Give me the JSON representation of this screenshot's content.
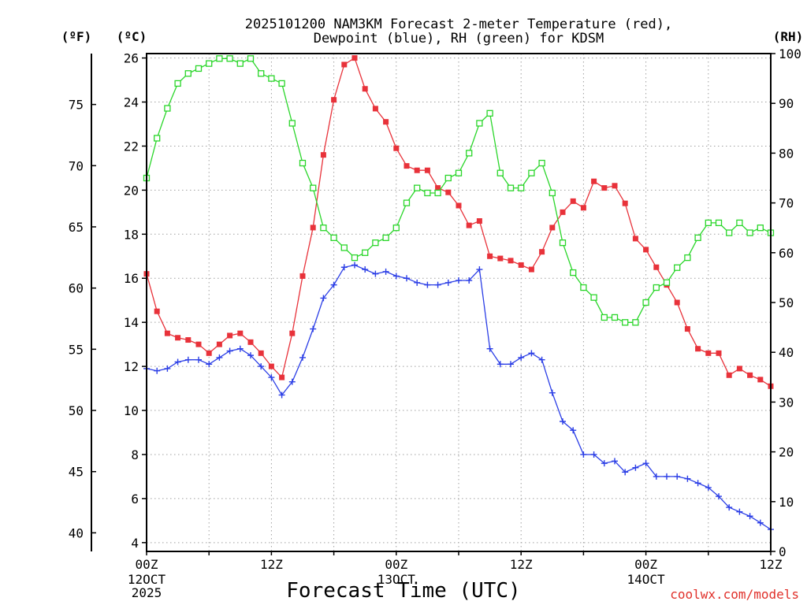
{
  "chart_data": {
    "type": "line",
    "title": [
      "2025101200 NAM3KM Forecast 2-meter Temperature (red),",
      "Dewpoint (blue), RH (green) for KDSM"
    ],
    "xlabel": "Forecast Time (UTC)",
    "credit": "coolwx.com/models",
    "units": {
      "left_outer": "(ºF)",
      "left_inner": "(ºC)",
      "right": "(RH)"
    },
    "x_hours": [
      0,
      1,
      2,
      3,
      4,
      5,
      6,
      7,
      8,
      9,
      10,
      11,
      12,
      13,
      14,
      15,
      16,
      17,
      18,
      19,
      20,
      21,
      22,
      23,
      24,
      25,
      26,
      27,
      28,
      29,
      30,
      31,
      32,
      33,
      34,
      35,
      36,
      37,
      38,
      39,
      40,
      41,
      42,
      43,
      44,
      45,
      46,
      47,
      48,
      49,
      50,
      51,
      52,
      53,
      54,
      55,
      56,
      57,
      58,
      59,
      60
    ],
    "xlim": [
      0,
      60
    ],
    "x_ticks": [
      {
        "hour": 0,
        "label": "00Z",
        "sub": [
          "12OCT",
          "2025"
        ]
      },
      {
        "hour": 12,
        "label": "12Z",
        "sub": []
      },
      {
        "hour": 24,
        "label": "00Z",
        "sub": [
          "13OCT"
        ]
      },
      {
        "hour": 36,
        "label": "12Z",
        "sub": []
      },
      {
        "hour": 48,
        "label": "00Z",
        "sub": [
          "14OCT"
        ]
      },
      {
        "hour": 60,
        "label": "12Z",
        "sub": []
      }
    ],
    "y_celsius": {
      "lim": [
        3.6,
        26.2
      ],
      "ticks": [
        4,
        6,
        8,
        10,
        12,
        14,
        16,
        18,
        20,
        22,
        24,
        26
      ]
    },
    "y_fahrenheit": {
      "ticks": [
        40,
        45,
        50,
        55,
        60,
        65,
        70,
        75
      ]
    },
    "y_rh": {
      "lim": [
        0,
        100
      ],
      "ticks": [
        0,
        10,
        20,
        30,
        40,
        50,
        60,
        70,
        80,
        90,
        100
      ]
    },
    "series": [
      {
        "name": "2-meter Temperature",
        "unit": "°C",
        "axis": "celsius",
        "color": "#e8323a",
        "marker": "filled-square",
        "values": [
          16.2,
          14.5,
          13.5,
          13.3,
          13.2,
          13.0,
          12.6,
          13.0,
          13.4,
          13.5,
          13.1,
          12.6,
          12.0,
          11.5,
          13.5,
          16.1,
          18.3,
          21.6,
          24.1,
          25.7,
          26.0,
          24.6,
          23.7,
          23.1,
          21.9,
          21.1,
          20.9,
          20.9,
          20.1,
          19.9,
          19.3,
          18.4,
          18.6,
          17.0,
          16.9,
          16.8,
          16.6,
          16.4,
          17.2,
          18.3,
          19.0,
          19.5,
          19.2,
          20.4,
          20.1,
          20.2,
          19.4,
          17.8,
          17.3,
          16.5,
          15.7,
          14.9,
          13.7,
          12.8,
          12.6,
          12.6,
          11.6,
          11.9,
          11.6,
          11.4,
          11.1
        ]
      },
      {
        "name": "Dewpoint",
        "unit": "°C",
        "axis": "celsius",
        "color": "#2b3ee6",
        "marker": "plus",
        "values": [
          11.9,
          11.8,
          11.9,
          12.2,
          12.3,
          12.3,
          12.1,
          12.4,
          12.7,
          12.8,
          12.5,
          12.0,
          11.5,
          10.7,
          11.3,
          12.4,
          13.7,
          15.1,
          15.7,
          16.5,
          16.6,
          16.4,
          16.2,
          16.3,
          16.1,
          16.0,
          15.8,
          15.7,
          15.7,
          15.8,
          15.9,
          15.9,
          16.4,
          12.8,
          12.1,
          12.1,
          12.4,
          12.6,
          12.3,
          10.8,
          9.5,
          9.1,
          8.0,
          8.0,
          7.6,
          7.7,
          7.2,
          7.4,
          7.6,
          7.0,
          7.0,
          7.0,
          6.9,
          6.7,
          6.5,
          6.1,
          5.6,
          5.4,
          5.2,
          4.9,
          4.6
        ]
      },
      {
        "name": "Relative Humidity",
        "unit": "%",
        "axis": "rh",
        "color": "#2ad62a",
        "marker": "open-square",
        "values": [
          75,
          83,
          89,
          94,
          96,
          97,
          98,
          99,
          99,
          98,
          99,
          96,
          95,
          94,
          86,
          78,
          73,
          65,
          63,
          61,
          59,
          60,
          62,
          63,
          65,
          70,
          73,
          72,
          72,
          75,
          76,
          80,
          86,
          88,
          76,
          73,
          73,
          76,
          78,
          72,
          62,
          56,
          53,
          51,
          47,
          47,
          46,
          46,
          50,
          53,
          54,
          57,
          59,
          63,
          66,
          66,
          64,
          66,
          64,
          65,
          64
        ]
      }
    ]
  }
}
